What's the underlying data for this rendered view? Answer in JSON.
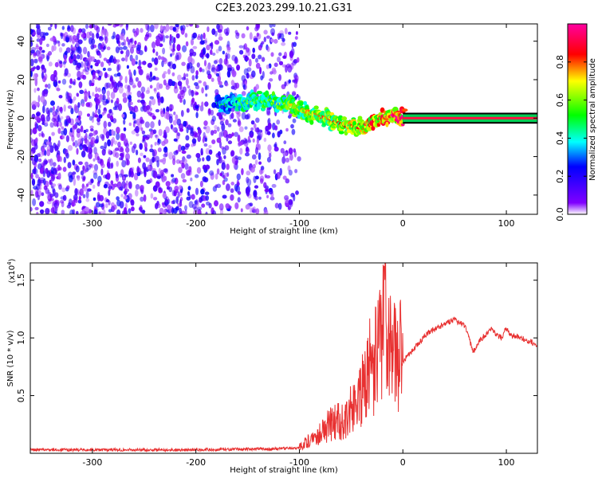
{
  "title": "C2E3.2023.299.10.21.G31",
  "chart_data": [
    {
      "type": "heatmap",
      "xlabel": "Height of straight line (km)",
      "ylabel": "Frequency (Hz)",
      "xlim": [
        -360,
        130
      ],
      "ylim": [
        -50,
        49
      ],
      "x_ticks": [
        -300,
        -200,
        -100,
        0,
        100
      ],
      "y_ticks": [
        -40,
        -20,
        0,
        20,
        40
      ],
      "colorbar": {
        "label": "Normalized spectral amplitude",
        "range": [
          0,
          1
        ],
        "ticks": [
          0.0,
          0.2,
          0.4,
          0.6,
          0.8
        ],
        "colors": [
          "#ffffff",
          "#8000ff",
          "#0000ff",
          "#00ffff",
          "#00ff00",
          "#ffff00",
          "#ff0000",
          "#ff00a0"
        ]
      },
      "noise_region_x": [
        -360,
        -100
      ],
      "signal_ridge": [
        {
          "x": -180,
          "y": 7,
          "a": 0.3
        },
        {
          "x": -160,
          "y": 8,
          "a": 0.45
        },
        {
          "x": -140,
          "y": 9,
          "a": 0.5
        },
        {
          "x": -120,
          "y": 8,
          "a": 0.55
        },
        {
          "x": -100,
          "y": 5,
          "a": 0.6
        },
        {
          "x": -80,
          "y": 1,
          "a": 0.65
        },
        {
          "x": -60,
          "y": -3,
          "a": 0.7
        },
        {
          "x": -45,
          "y": -5,
          "a": 0.7
        },
        {
          "x": -30,
          "y": -1,
          "a": 0.8
        },
        {
          "x": -15,
          "y": 1,
          "a": 0.85
        },
        {
          "x": 0,
          "y": 0,
          "a": 0.9
        },
        {
          "x": 130,
          "y": 0,
          "a": 0.95
        }
      ]
    },
    {
      "type": "line",
      "xlabel": "Height of straight line (km)",
      "ylabel": "SNR (10 * v/v)",
      "y_multiplier": "(x10",
      "y_multiplier_exp": "4",
      "y_multiplier_close": ")",
      "xlim": [
        -360,
        130
      ],
      "ylim": [
        0,
        1.65
      ],
      "x_ticks": [
        -300,
        -200,
        -100,
        0,
        100
      ],
      "y_ticks": [
        0.5,
        1.0,
        1.5
      ],
      "y_tick_labels": [
        "0.5",
        "1.0",
        "1.5"
      ],
      "color": "#e83030",
      "series": [
        {
          "x": [
            -360,
            -300,
            -200,
            -120,
            -100,
            -85,
            -70,
            -55,
            -45,
            -35,
            -25,
            -20,
            -18,
            -15,
            -5,
            0,
            10,
            25,
            40,
            50,
            60,
            68,
            75,
            85,
            95,
            100,
            105,
            115,
            125,
            130
          ],
          "y": [
            0.03,
            0.03,
            0.03,
            0.04,
            0.05,
            0.15,
            0.25,
            0.3,
            0.45,
            0.7,
            0.85,
            1.0,
            1.62,
            0.95,
            0.9,
            0.8,
            0.9,
            1.05,
            1.12,
            1.16,
            1.1,
            0.88,
            0.98,
            1.08,
            1.0,
            1.08,
            1.02,
            1.0,
            0.96,
            0.92
          ]
        }
      ]
    }
  ]
}
